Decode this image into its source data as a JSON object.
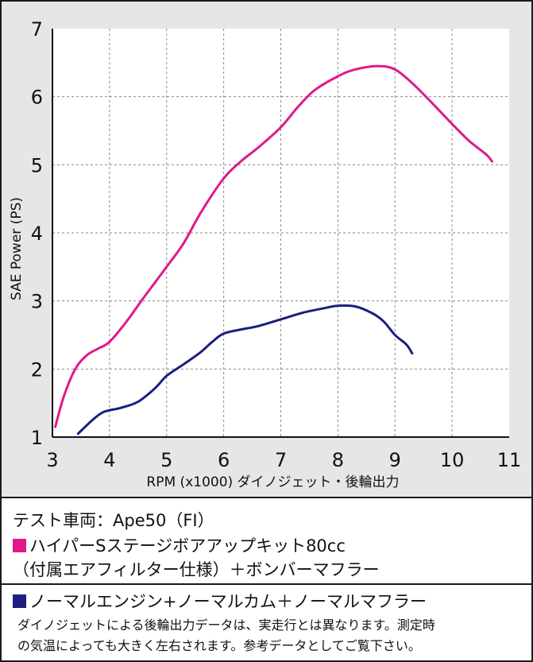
{
  "chart_data": {
    "type": "line",
    "xlabel": "RPM (x1000) ダイノジェット・後輪出力",
    "ylabel": "SAE Power (PS)",
    "xlim": [
      3,
      11
    ],
    "ylim": [
      1,
      7
    ],
    "xticks": [
      3,
      4,
      5,
      6,
      7,
      8,
      9,
      10,
      11
    ],
    "yticks": [
      1,
      2,
      3,
      4,
      5,
      6,
      7
    ],
    "grid": true,
    "series": [
      {
        "color": "#e0198a",
        "points": [
          [
            3.05,
            1.15
          ],
          [
            3.2,
            1.6
          ],
          [
            3.4,
            2.0
          ],
          [
            3.6,
            2.2
          ],
          [
            3.8,
            2.3
          ],
          [
            4.0,
            2.4
          ],
          [
            4.3,
            2.7
          ],
          [
            4.6,
            3.05
          ],
          [
            5.0,
            3.5
          ],
          [
            5.3,
            3.85
          ],
          [
            5.6,
            4.3
          ],
          [
            6.0,
            4.8
          ],
          [
            6.3,
            5.05
          ],
          [
            6.6,
            5.25
          ],
          [
            7.0,
            5.55
          ],
          [
            7.3,
            5.85
          ],
          [
            7.6,
            6.1
          ],
          [
            8.0,
            6.3
          ],
          [
            8.3,
            6.4
          ],
          [
            8.7,
            6.45
          ],
          [
            9.0,
            6.4
          ],
          [
            9.3,
            6.2
          ],
          [
            9.6,
            5.95
          ],
          [
            10.0,
            5.6
          ],
          [
            10.3,
            5.35
          ],
          [
            10.6,
            5.15
          ],
          [
            10.7,
            5.05
          ]
        ]
      },
      {
        "color": "#1c1f7e",
        "points": [
          [
            3.45,
            1.05
          ],
          [
            3.7,
            1.25
          ],
          [
            3.9,
            1.37
          ],
          [
            4.2,
            1.43
          ],
          [
            4.5,
            1.52
          ],
          [
            4.8,
            1.72
          ],
          [
            5.0,
            1.9
          ],
          [
            5.3,
            2.07
          ],
          [
            5.6,
            2.25
          ],
          [
            5.8,
            2.4
          ],
          [
            6.0,
            2.52
          ],
          [
            6.3,
            2.58
          ],
          [
            6.6,
            2.63
          ],
          [
            7.0,
            2.73
          ],
          [
            7.4,
            2.83
          ],
          [
            7.8,
            2.9
          ],
          [
            8.0,
            2.93
          ],
          [
            8.3,
            2.92
          ],
          [
            8.6,
            2.82
          ],
          [
            8.8,
            2.7
          ],
          [
            9.0,
            2.5
          ],
          [
            9.2,
            2.36
          ],
          [
            9.3,
            2.23
          ]
        ]
      }
    ]
  },
  "legend": {
    "vehicle": "テスト車両：Ape50（FI）",
    "pink_line1": "ハイパーSステージボアアップキット80cc",
    "pink_line2": "（付属エアフィルター仕様）＋ボンバーマフラー",
    "blue_line": "ノーマルエンジン+ノーマルカム＋ノーマルマフラー",
    "note_line1": "ダイノジェットによる後輪出力データは、実走行とは異なります。測定時",
    "note_line2": "の気温によっても大きく左右されます。参考データとしてご覧下さい。",
    "pink_color": "#e0198a",
    "blue_color": "#1c1f7e"
  }
}
